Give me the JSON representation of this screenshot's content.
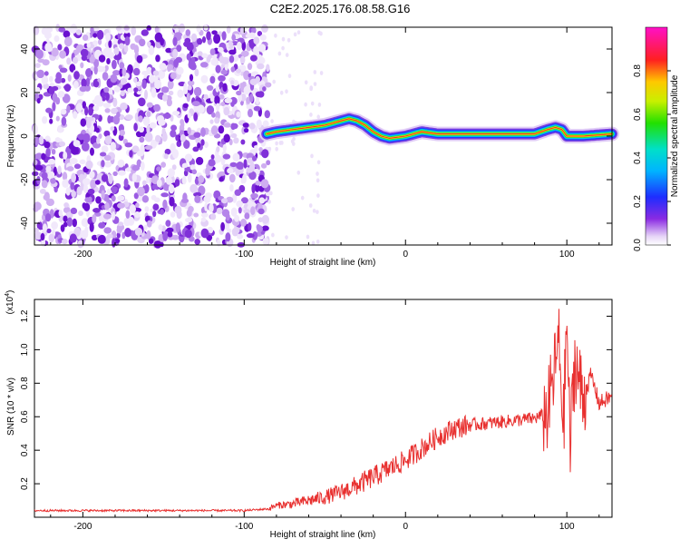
{
  "title": "C2E2.2025.176.08.58.G16",
  "chart_data": [
    {
      "type": "heatmap",
      "xlabel": "Height of straight line (km)",
      "ylabel": "Frequency (Hz)",
      "xlim": [
        -230,
        128
      ],
      "ylim": [
        -50,
        50
      ],
      "xticks": [
        -200,
        -100,
        0,
        100
      ],
      "yticks": [
        -40,
        -20,
        0,
        20,
        40
      ],
      "colorbar": {
        "label": "Normalized spectral amplitude",
        "range": [
          0,
          1
        ],
        "ticks": [
          0,
          0.2,
          0.4,
          0.6,
          0.8
        ],
        "tick_labels": [
          "0.0",
          "0.2",
          "0.4",
          "0.6",
          "0.8"
        ],
        "colormap": "rainbow-white"
      },
      "noise_region_x": [
        -230,
        -85
      ],
      "ridge": {
        "x": [
          -86,
          -80,
          -70,
          -60,
          -50,
          -40,
          -35,
          -30,
          -25,
          -20,
          -15,
          -10,
          0,
          10,
          20,
          40,
          60,
          80,
          88,
          93,
          97,
          100,
          110,
          128
        ],
        "y": [
          1,
          2,
          3,
          4,
          5,
          7,
          8,
          7,
          5,
          2,
          0,
          -1,
          0,
          2,
          1,
          1,
          1,
          1,
          3,
          4,
          3,
          0,
          0,
          1
        ]
      }
    },
    {
      "type": "line",
      "xlabel": "Height of straight line (km)",
      "ylabel": "SNR (10 * v/v)",
      "y_multiplier": "(x10",
      "y_multiplier_exp": "4",
      "xlim": [
        -230,
        128
      ],
      "ylim": [
        0.0,
        1.3
      ],
      "xticks": [
        -200,
        -100,
        0,
        100
      ],
      "yticks": [
        0.2,
        0.4,
        0.6,
        0.8,
        1.0,
        1.2
      ],
      "ytick_labels": [
        "0.2",
        "0.4",
        "0.6",
        "0.8",
        "1.0",
        "1.2"
      ],
      "color": "#e8302f",
      "series": [
        {
          "x": [
            -230,
            -150,
            -100,
            -85,
            -80,
            -70,
            -60,
            -50,
            -40,
            -30,
            -20,
            -10,
            0,
            10,
            20,
            30,
            40,
            50,
            60,
            70,
            80,
            88,
            92,
            95,
            98,
            100,
            102,
            105,
            110,
            115,
            120,
            128
          ],
          "y": [
            0.04,
            0.04,
            0.04,
            0.05,
            0.07,
            0.08,
            0.1,
            0.12,
            0.15,
            0.19,
            0.24,
            0.29,
            0.34,
            0.41,
            0.48,
            0.53,
            0.55,
            0.56,
            0.57,
            0.58,
            0.59,
            0.62,
            0.85,
            1.05,
            0.55,
            1.2,
            0.4,
            0.95,
            0.7,
            0.85,
            0.68,
            0.72
          ]
        }
      ]
    }
  ]
}
